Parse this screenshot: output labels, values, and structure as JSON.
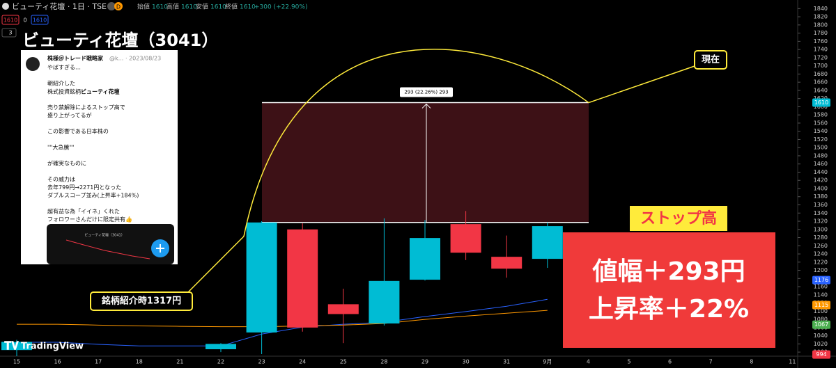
{
  "header": {
    "symbol": "ビューティ花壇 · 1日 · TSE",
    "badge": "D",
    "ohlc": [
      {
        "label": "始値",
        "value": "1610"
      },
      {
        "label": "高値",
        "value": "1610"
      },
      {
        "label": "安値",
        "value": "1610"
      },
      {
        "label": "終値",
        "value": "1610"
      }
    ],
    "change": "+300 (+22.90%)",
    "bid": "1610",
    "spread": "0",
    "ask": "1610",
    "indicators": "3"
  },
  "title": "ビューティ花壇（3041）",
  "tweet": {
    "author": "株様＠トレード戦略家",
    "handle": "@k...",
    "date": "· 2023/08/23",
    "paragraphs": [
      [
        "やばすぎる…"
      ],
      [
        "朝紹介した",
        [
          "株式投資銘柄",
          "ビューティ花壇"
        ]
      ],
      [
        "売り禁解除によるストップ高で",
        "盛り上がってるが"
      ],
      [
        "この影響である日本株の"
      ],
      [
        "\"\"大急騰\"\""
      ],
      [
        "が確実なものに"
      ],
      [
        "その威力は",
        "去年799円→2271円となった",
        "ダブルスコープ並み(上昇率+184%)"
      ],
      [
        "超有益な為「イイネ」くれた",
        "フォロワーさんだけに限定共有👍"
      ]
    ],
    "thumb_title": "ビューティ花壇（3041）"
  },
  "annotations": {
    "now": "現在",
    "stop_high": "ストップ高",
    "intro": "銘柄紹介時1317円",
    "range_label": "293 (22.26%) 293",
    "gain": "値幅＋293円",
    "rate": "上昇率＋22%",
    "logo": "TradingView"
  },
  "chart_data": {
    "type": "candlestick",
    "categories": [
      "15",
      "16",
      "17",
      "18",
      "21",
      "22",
      "23",
      "24",
      "25",
      "28",
      "29",
      "30",
      "31",
      "9月",
      "4",
      "5",
      "6",
      "7",
      "8",
      "11"
    ],
    "open": [
      1005,
      null,
      null,
      null,
      null,
      1007,
      1048,
      1300,
      1117,
      1070,
      1177,
      1313,
      1233,
      1228,
      null,
      null,
      null,
      null,
      null,
      null
    ],
    "high": [
      1030,
      null,
      null,
      null,
      null,
      1022,
      1320,
      1315,
      1155,
      1327,
      1323,
      1345,
      1285,
      1317,
      null,
      null,
      null,
      null,
      null,
      null
    ],
    "low": [
      990,
      null,
      null,
      null,
      null,
      1000,
      995,
      1050,
      1022,
      1065,
      1175,
      1225,
      1182,
      1206,
      null,
      null,
      null,
      null,
      null,
      null
    ],
    "close": [
      1025,
      null,
      null,
      null,
      null,
      1020,
      1317,
      1060,
      1093,
      1174,
      1279,
      1243,
      1204,
      1308,
      null,
      null,
      null,
      null,
      null,
      null
    ],
    "up_color": "#00bcd4",
    "down_color": "#f23645",
    "lines": [
      {
        "color": "#2962ff",
        "values": [
          1024,
          1024,
          1019,
          1015,
          1015,
          1015,
          1044,
          1061,
          1068,
          1073,
          1087,
          1099,
          1112,
          1129,
          null,
          null,
          null,
          null,
          null,
          null
        ]
      },
      {
        "color": "#ff9800",
        "values": [
          1068,
          1068,
          1066,
          1064,
          1063,
          1062,
          1062,
          1064,
          1066,
          1070,
          1080,
          1088,
          1095,
          1102,
          null,
          null,
          null,
          null,
          null,
          null
        ]
      }
    ],
    "ylim": [
      990,
      1861
    ],
    "yticks": [
      1000,
      1020,
      1040,
      1060,
      1080,
      1100,
      1120,
      1140,
      1160,
      1180,
      1200,
      1220,
      1240,
      1260,
      1280,
      1300,
      1320,
      1340,
      1360,
      1380,
      1400,
      1420,
      1440,
      1460,
      1480,
      1500,
      1520,
      1540,
      1560,
      1580,
      1600,
      1620,
      1640,
      1660,
      1680,
      1700,
      1720,
      1740,
      1760,
      1780,
      1800,
      1820,
      1840
    ],
    "range": {
      "from": 1317,
      "to": 1610
    },
    "price_badges": [
      {
        "value": 1610,
        "color": "#00bcd4"
      },
      {
        "value": 1176,
        "color": "#2962ff"
      },
      {
        "value": 1115,
        "color": "#ff9800"
      },
      {
        "value": 1067,
        "color": "#4caf50"
      },
      {
        "value": 994,
        "color": "#f23645"
      }
    ]
  }
}
